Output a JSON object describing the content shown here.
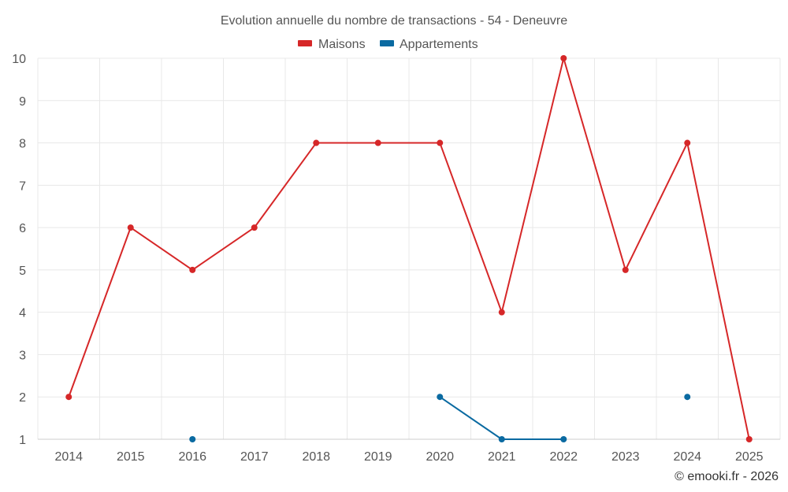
{
  "chart_data": {
    "type": "line",
    "title": "Evolution annuelle du nombre de transactions - 54 - Deneuvre",
    "categories": [
      "2014",
      "2015",
      "2016",
      "2017",
      "2018",
      "2019",
      "2020",
      "2021",
      "2022",
      "2023",
      "2024",
      "2025"
    ],
    "xlabel": "",
    "ylabel": "",
    "ylim": [
      1,
      10
    ],
    "yticks": [
      "1",
      "2",
      "3",
      "4",
      "5",
      "6",
      "7",
      "8",
      "9",
      "10"
    ],
    "grid": true,
    "legend_position": "top-center",
    "series": [
      {
        "name": "Maisons",
        "color": "#d62728",
        "values": [
          2,
          6,
          5,
          6,
          8,
          8,
          8,
          4,
          10,
          5,
          8,
          1
        ]
      },
      {
        "name": "Appartements",
        "color": "#0a6aa1",
        "values": [
          null,
          null,
          1,
          null,
          null,
          null,
          2,
          1,
          1,
          null,
          2,
          null
        ]
      }
    ]
  },
  "credit": "© emooki.fr - 2026"
}
